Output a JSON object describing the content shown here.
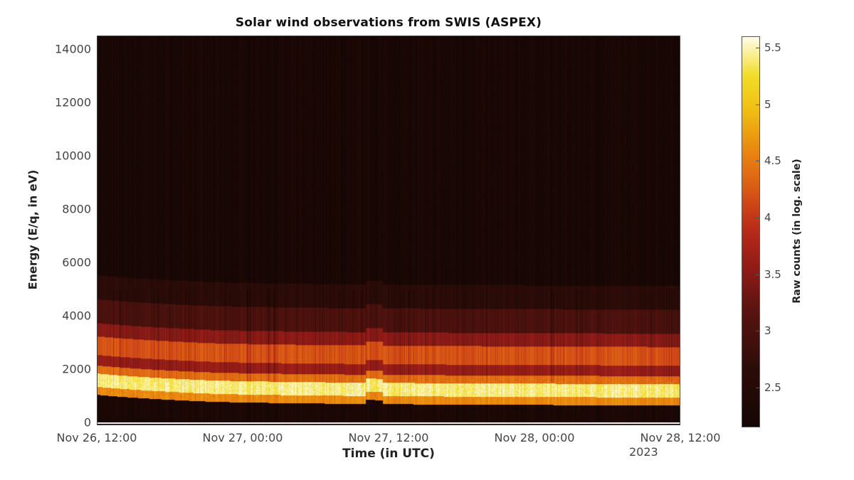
{
  "chart_data": {
    "type": "heatmap",
    "title": "Solar wind observations from SWIS (ASPEX)",
    "xlabel": "Time (in UTC)",
    "ylabel": "Energy (E/q, in eV)",
    "colorbar_label": "Raw counts (in log. scale)",
    "colormap": "hot",
    "x_ticks": [
      "Nov 26, 12:00",
      "Nov 27, 00:00",
      "Nov 27, 12:00",
      "Nov 28, 00:00",
      "Nov 28, 12:00"
    ],
    "x_year_label": "2023",
    "x_range": [
      "2023-11-26 12:00",
      "2023-11-28 12:00"
    ],
    "y_ticks": [
      0,
      2000,
      4000,
      6000,
      8000,
      10000,
      12000,
      14000
    ],
    "ylim": [
      0,
      14500
    ],
    "colorbar_ticks": [
      2.5,
      3,
      3.5,
      4,
      4.5,
      5,
      5.5
    ],
    "clim": [
      2.15,
      5.6
    ],
    "grid": false,
    "bands": [
      {
        "energy_range_eV": [
          0,
          700
        ],
        "log_counts": 2.3,
        "description": "dark background below peak"
      },
      {
        "energy_range_eV": [
          700,
          1000
        ],
        "log_counts": 4.6,
        "description": "orange lower edge"
      },
      {
        "energy_range_eV": [
          1000,
          1500
        ],
        "log_counts": 5.4,
        "description": "bright white-yellow proton peak"
      },
      {
        "energy_range_eV": [
          1500,
          1800
        ],
        "log_counts": 4.4,
        "description": "orange"
      },
      {
        "energy_range_eV": [
          1800,
          2200
        ],
        "log_counts": 3.6,
        "description": "red"
      },
      {
        "energy_range_eV": [
          2200,
          2900
        ],
        "log_counts": 4.2,
        "description": "orange secondary (alpha) band"
      },
      {
        "energy_range_eV": [
          2900,
          3400
        ],
        "log_counts": 3.5,
        "description": "red"
      },
      {
        "energy_range_eV": [
          3400,
          4300
        ],
        "log_counts": 3.0,
        "description": "dark red"
      },
      {
        "energy_range_eV": [
          4300,
          5200
        ],
        "log_counts": 2.6,
        "description": "faint dark red"
      },
      {
        "energy_range_eV": [
          5200,
          14500
        ],
        "log_counts": 2.25,
        "description": "near-black background"
      }
    ],
    "notes": "Peak energy ~1200-1500 eV near Nov 26 12:00, decreasing to ~900-1100 eV afterward; brief enhancements near Nov 27 ~10:00."
  },
  "colors": {
    "background_dark": "#1a0a06",
    "dark_red": "#5a1410",
    "red": "#b0201c",
    "orange": "#e8760e",
    "yellow": "#f2d81a",
    "white": "#fffbe8"
  }
}
